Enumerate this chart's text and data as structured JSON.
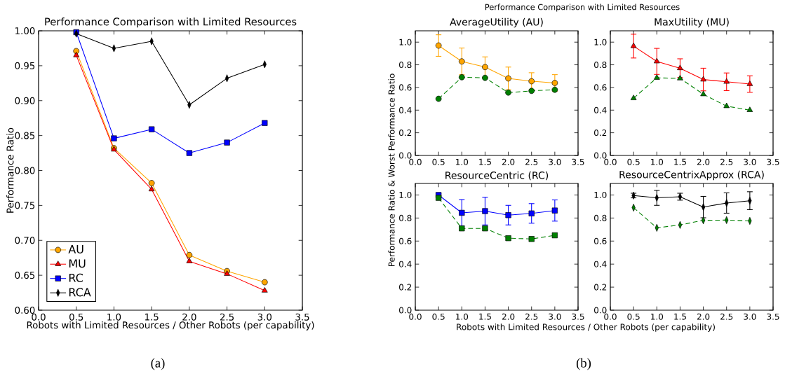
{
  "chart_data": [
    {
      "type": "line",
      "title": "Performance Comparison with Limited Resources",
      "xlabel": "Robots with Limited Resources / Other Robots (per capability)",
      "ylabel": "Performance Ratio",
      "x": [
        0.5,
        1.0,
        1.5,
        2.0,
        2.5,
        3.0
      ],
      "xlim": [
        0,
        3.5
      ],
      "xticks": [
        {
          "value": 0,
          "label": "0.0"
        },
        {
          "value": 0.5,
          "label": "0.5"
        },
        {
          "value": 1,
          "label": "1.0"
        },
        {
          "value": 1.5,
          "label": "1.5"
        },
        {
          "value": 2,
          "label": "2.0"
        },
        {
          "value": 2.5,
          "label": "2.5"
        },
        {
          "value": 3,
          "label": "3.0"
        },
        {
          "value": 3.5,
          "label": "3.5"
        }
      ],
      "ylim": [
        0.6,
        1.0
      ],
      "yticks": [
        {
          "value": 0.6,
          "label": "0.60"
        },
        {
          "value": 0.65,
          "label": "0.65"
        },
        {
          "value": 0.7,
          "label": "0.70"
        },
        {
          "value": 0.75,
          "label": "0.75"
        },
        {
          "value": 0.8,
          "label": "0.80"
        },
        {
          "value": 0.85,
          "label": "0.85"
        },
        {
          "value": 0.9,
          "label": "0.90"
        },
        {
          "value": 0.95,
          "label": "0.95"
        },
        {
          "value": 1.0,
          "label": "1.00"
        }
      ],
      "legend": "bottom left",
      "series": [
        {
          "name": "AU",
          "color": "#ffa500",
          "marker": "circle",
          "values": [
            0.971,
            0.832,
            0.782,
            0.679,
            0.656,
            0.64
          ]
        },
        {
          "name": "MU",
          "color": "#ff0000",
          "marker": "triangle",
          "values": [
            0.965,
            0.83,
            0.773,
            0.67,
            0.652,
            0.628
          ]
        },
        {
          "name": "RC",
          "color": "#0000ff",
          "marker": "square",
          "values": [
            0.998,
            0.846,
            0.859,
            0.825,
            0.84,
            0.868
          ]
        },
        {
          "name": "RCA",
          "color": "#000000",
          "marker": "diamond",
          "values": [
            0.996,
            0.975,
            0.985,
            0.894,
            0.932,
            0.952
          ]
        }
      ],
      "annotations": [
        "(a)"
      ]
    },
    {
      "type": "line",
      "title": "AverageUtility (AU)",
      "ylabel": "Performance Ratio & Worst Performance Ratio",
      "x": [
        0.5,
        1.0,
        1.5,
        2.0,
        2.5,
        3.0
      ],
      "xlim": [
        0,
        3.5
      ],
      "xticks": [
        {
          "value": 0,
          "label": "0.0"
        },
        {
          "value": 0.5,
          "label": "0.5"
        },
        {
          "value": 1,
          "label": "1.0"
        },
        {
          "value": 1.5,
          "label": "1.5"
        },
        {
          "value": 2,
          "label": "2.0"
        },
        {
          "value": 2.5,
          "label": "2.5"
        },
        {
          "value": 3,
          "label": "3.0"
        },
        {
          "value": 3.5,
          "label": "3.5"
        }
      ],
      "ylim": [
        0,
        1.1
      ],
      "yticks": [
        {
          "value": 0,
          "label": "0.0"
        },
        {
          "value": 0.2,
          "label": "0.2"
        },
        {
          "value": 0.4,
          "label": "0.4"
        },
        {
          "value": 0.6,
          "label": "0.6"
        },
        {
          "value": 0.8,
          "label": "0.8"
        },
        {
          "value": 1.0,
          "label": "1.0"
        }
      ],
      "series": [
        {
          "color": "#ffa500",
          "marker": "circle",
          "line_style": "solid",
          "values": [
            0.97,
            0.83,
            0.78,
            0.68,
            0.655,
            0.64
          ],
          "errors": [
            0.095,
            0.118,
            0.09,
            0.1,
            0.075,
            0.073
          ]
        },
        {
          "color": "#008000",
          "marker": "circle",
          "line_style": "dashed",
          "values": [
            0.5,
            0.69,
            0.685,
            0.555,
            0.57,
            0.58
          ]
        }
      ],
      "annotations": [
        "Performance Comparison with Limited Resources"
      ]
    },
    {
      "type": "line",
      "title": "MaxUtility (MU)",
      "x": [
        0.5,
        1.0,
        1.5,
        2.0,
        2.5,
        3.0
      ],
      "xlim": [
        0,
        3.5
      ],
      "xticks": [
        {
          "value": 0,
          "label": "0.0"
        },
        {
          "value": 0.5,
          "label": "0.5"
        },
        {
          "value": 1,
          "label": "1.0"
        },
        {
          "value": 1.5,
          "label": "1.5"
        },
        {
          "value": 2,
          "label": "2.0"
        },
        {
          "value": 2.5,
          "label": "2.5"
        },
        {
          "value": 3,
          "label": "3.0"
        },
        {
          "value": 3.5,
          "label": "3.5"
        }
      ],
      "ylim": [
        0,
        1.1
      ],
      "yticks": [
        {
          "value": 0,
          "label": "0.0"
        },
        {
          "value": 0.2,
          "label": "0.2"
        },
        {
          "value": 0.4,
          "label": "0.4"
        },
        {
          "value": 0.6,
          "label": "0.6"
        },
        {
          "value": 0.8,
          "label": "0.8"
        },
        {
          "value": 1.0,
          "label": "1.0"
        }
      ],
      "series": [
        {
          "color": "#ff0000",
          "marker": "triangle",
          "line_style": "solid",
          "values": [
            0.965,
            0.83,
            0.77,
            0.67,
            0.65,
            0.63
          ],
          "errors": [
            0.105,
            0.115,
            0.083,
            0.1,
            0.078,
            0.073
          ]
        },
        {
          "color": "#008000",
          "marker": "triangle",
          "line_style": "dashed",
          "values": [
            0.505,
            0.685,
            0.68,
            0.54,
            0.435,
            0.4
          ]
        }
      ]
    },
    {
      "type": "line",
      "title": "ResourceCentric (RC)",
      "xlabel": "Robots with Limited Resources / Other Robots (per capability)",
      "x": [
        0.5,
        1.0,
        1.5,
        2.0,
        2.5,
        3.0
      ],
      "xlim": [
        0,
        3.5
      ],
      "xticks": [
        {
          "value": 0,
          "label": "0.0"
        },
        {
          "value": 0.5,
          "label": "0.5"
        },
        {
          "value": 1,
          "label": "1.0"
        },
        {
          "value": 1.5,
          "label": "1.5"
        },
        {
          "value": 2,
          "label": "2.0"
        },
        {
          "value": 2.5,
          "label": "2.5"
        },
        {
          "value": 3,
          "label": "3.0"
        },
        {
          "value": 3.5,
          "label": "3.5"
        }
      ],
      "ylim": [
        0,
        1.1
      ],
      "yticks": [
        {
          "value": 0,
          "label": "0.0"
        },
        {
          "value": 0.2,
          "label": "0.2"
        },
        {
          "value": 0.4,
          "label": "0.4"
        },
        {
          "value": 0.6,
          "label": "0.6"
        },
        {
          "value": 0.8,
          "label": "0.8"
        },
        {
          "value": 1.0,
          "label": "1.0"
        }
      ],
      "series": [
        {
          "color": "#0000ff",
          "marker": "square",
          "line_style": "solid",
          "values": [
            1.0,
            0.845,
            0.86,
            0.825,
            0.84,
            0.865
          ],
          "errors": [
            0.01,
            0.115,
            0.12,
            0.085,
            0.085,
            0.092
          ]
        },
        {
          "color": "#008000",
          "marker": "square",
          "line_style": "dashed",
          "values": [
            0.975,
            0.71,
            0.71,
            0.625,
            0.618,
            0.65
          ]
        }
      ],
      "annotations": [
        "(b)"
      ]
    },
    {
      "type": "line",
      "title": "ResourceCentrixApprox (RCA)",
      "x": [
        0.5,
        1.0,
        1.5,
        2.0,
        2.5,
        3.0
      ],
      "xlim": [
        0,
        3.5
      ],
      "xticks": [
        {
          "value": 0,
          "label": "0.0"
        },
        {
          "value": 0.5,
          "label": "0.5"
        },
        {
          "value": 1,
          "label": "1.0"
        },
        {
          "value": 1.5,
          "label": "1.5"
        },
        {
          "value": 2,
          "label": "2.0"
        },
        {
          "value": 2.5,
          "label": "2.5"
        },
        {
          "value": 3,
          "label": "3.0"
        },
        {
          "value": 3.5,
          "label": "3.5"
        }
      ],
      "ylim": [
        0,
        1.1
      ],
      "yticks": [
        {
          "value": 0,
          "label": "0.0"
        },
        {
          "value": 0.2,
          "label": "0.2"
        },
        {
          "value": 0.4,
          "label": "0.4"
        },
        {
          "value": 0.6,
          "label": "0.6"
        },
        {
          "value": 0.8,
          "label": "0.8"
        },
        {
          "value": 1.0,
          "label": "1.0"
        }
      ],
      "series": [
        {
          "color": "#000000",
          "marker": "diamond",
          "line_style": "solid",
          "values": [
            0.995,
            0.975,
            0.985,
            0.895,
            0.93,
            0.95
          ],
          "errors": [
            0.02,
            0.065,
            0.03,
            0.093,
            0.088,
            0.078
          ]
        },
        {
          "color": "#008000",
          "marker": "diamond",
          "line_style": "dashed",
          "values": [
            0.89,
            0.715,
            0.74,
            0.78,
            0.782,
            0.775
          ]
        }
      ]
    }
  ]
}
